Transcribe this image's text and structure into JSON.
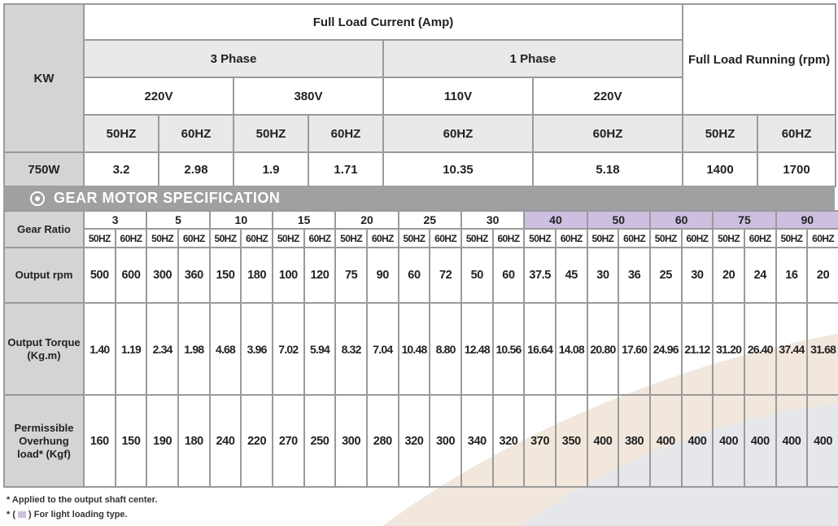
{
  "top_table": {
    "kw_label": "KW",
    "full_load_current": "Full Load Current (Amp)",
    "three_phase": "3 Phase",
    "one_phase": "1 Phase",
    "full_load_running": "Full Load Running (rpm)",
    "voltages": [
      "220V",
      "380V",
      "110V",
      "220V"
    ],
    "freqs": [
      "50HZ",
      "60HZ",
      "50HZ",
      "60HZ",
      "60HZ",
      "60HZ",
      "50HZ",
      "60HZ"
    ],
    "row_label": "750W",
    "row_values": [
      "3.2",
      "2.98",
      "1.9",
      "1.71",
      "10.35",
      "5.18",
      "1400",
      "1700"
    ]
  },
  "banner": {
    "title": "GEAR MOTOR SPECIFICATION"
  },
  "gear_table": {
    "gear_ratio_label": "Gear Ratio",
    "ratios": [
      "3",
      "5",
      "10",
      "15",
      "20",
      "25",
      "30",
      "40",
      "50",
      "60",
      "75",
      "90"
    ],
    "freq_50": "50HZ",
    "freq_60": "60HZ",
    "rows": [
      {
        "label": "Output rpm",
        "values": [
          "500",
          "600",
          "300",
          "360",
          "150",
          "180",
          "100",
          "120",
          "75",
          "90",
          "60",
          "72",
          "50",
          "60",
          "37.5",
          "45",
          "30",
          "36",
          "25",
          "30",
          "20",
          "24",
          "16",
          "20"
        ]
      },
      {
        "label": "Output Torque (Kg.m)",
        "values": [
          "1.40",
          "1.19",
          "2.34",
          "1.98",
          "4.68",
          "3.96",
          "7.02",
          "5.94",
          "8.32",
          "7.04",
          "10.48",
          "8.80",
          "12.48",
          "10.56",
          "16.64",
          "14.08",
          "20.80",
          "17.60",
          "24.96",
          "21.12",
          "31.20",
          "26.40",
          "37.44",
          "31.68"
        ]
      },
      {
        "label": "Permissible Overhung load* (Kgf)",
        "values": [
          "160",
          "150",
          "190",
          "180",
          "240",
          "220",
          "270",
          "250",
          "300",
          "280",
          "320",
          "300",
          "340",
          "320",
          "370",
          "350",
          "400",
          "380",
          "400",
          "400",
          "400",
          "400",
          "400",
          "400"
        ]
      }
    ]
  },
  "footnotes": {
    "note1": "* Applied to the output shaft center.",
    "note2_prefix": "* (",
    "note2_suffix": ") For light loading type."
  },
  "colors": {
    "light_loading": "#cdbfe0",
    "banner": "#9fa0a2",
    "label_bg": "#d4d4d4"
  }
}
